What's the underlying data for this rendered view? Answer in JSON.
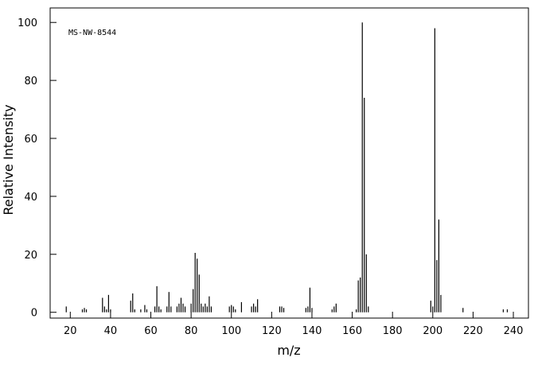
{
  "chart_data": {
    "type": "stick",
    "annotation": "MS-NW-8544",
    "xlabel": "m/z",
    "ylabel": "Relative Intensity",
    "xlim": [
      10,
      247.5
    ],
    "ylim": [
      -2,
      105
    ],
    "xticks": [
      20,
      40,
      60,
      80,
      100,
      120,
      140,
      160,
      180,
      200,
      220,
      240
    ],
    "yticks": [
      0,
      20,
      40,
      60,
      80,
      100
    ],
    "series": [
      {
        "color": "#000000",
        "x": [
          18,
          26,
          27,
          28,
          36,
          37,
          38,
          39,
          40,
          50,
          51,
          52,
          55,
          57,
          58,
          62,
          63,
          64,
          65,
          68,
          69,
          70,
          73,
          74,
          75,
          76,
          77,
          80,
          81,
          82,
          83,
          84,
          85,
          86,
          87,
          88,
          89,
          90,
          99,
          100,
          101,
          102,
          105,
          110,
          111,
          112,
          113,
          124,
          125,
          126,
          137,
          138,
          139,
          140,
          150,
          151,
          152,
          162,
          163,
          164,
          165,
          166,
          167,
          168,
          199,
          200,
          201,
          202,
          203,
          204,
          215,
          235,
          237
        ],
        "values": [
          2,
          1,
          1.5,
          1,
          5,
          2,
          1,
          6,
          1,
          4,
          6.5,
          1,
          1,
          2.5,
          1,
          2,
          9,
          2,
          1,
          2,
          7,
          2,
          2,
          3,
          5,
          3,
          2,
          3,
          8,
          20.5,
          18.5,
          13,
          3,
          2,
          3,
          2,
          5.5,
          2,
          2,
          2.5,
          2,
          1,
          3.5,
          2,
          3,
          2,
          4.5,
          2,
          2,
          1.5,
          1.5,
          2,
          8.5,
          1.5,
          1,
          2,
          3,
          1,
          11,
          12,
          100,
          74,
          20,
          2,
          4,
          2,
          98,
          18,
          32,
          6,
          1.5,
          1,
          1
        ]
      }
    ]
  }
}
